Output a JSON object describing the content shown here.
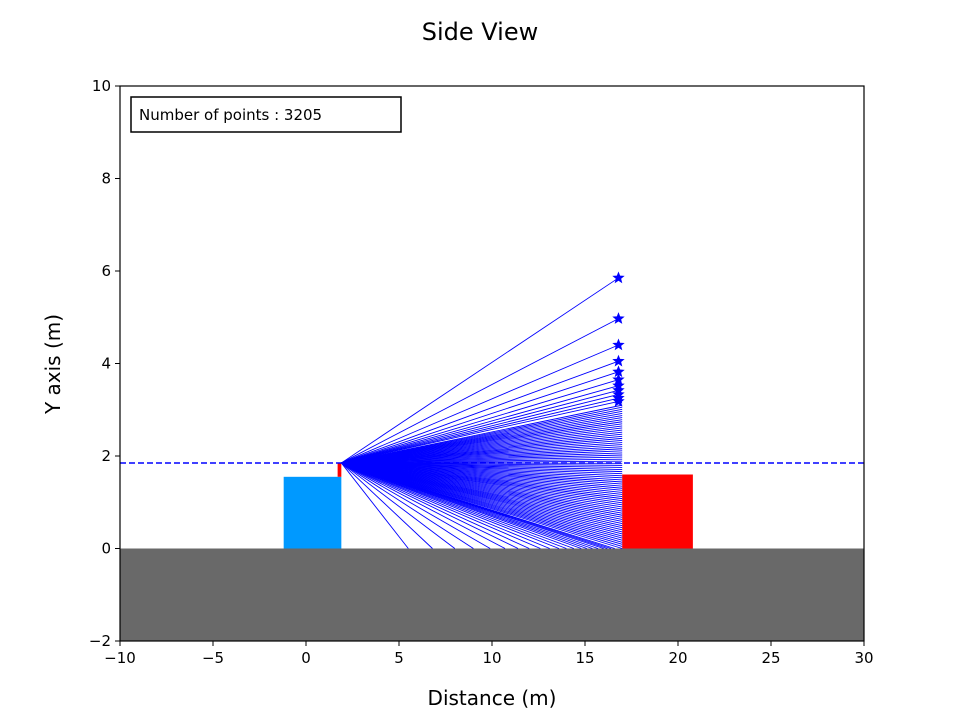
{
  "chart_data": {
    "type": "scatter",
    "title": "Side View",
    "xlabel": "Distance (m)",
    "ylabel": "Y axis (m)",
    "xlim": [
      -10,
      30
    ],
    "ylim": [
      -2,
      10
    ],
    "xticks": [
      -10,
      -5,
      0,
      5,
      10,
      15,
      20,
      25,
      30
    ],
    "xtick_labels": [
      "−10",
      "−5",
      "0",
      "5",
      "10",
      "15",
      "20",
      "25",
      "30"
    ],
    "yticks": [
      -2,
      0,
      2,
      4,
      6,
      8,
      10
    ],
    "ytick_labels": [
      "−2",
      "0",
      "2",
      "4",
      "6",
      "8",
      "10"
    ],
    "annotation": "Number of points : 3205",
    "colors": {
      "ground": "#696969",
      "ego_vehicle": "#0099ff",
      "target_vehicle": "#ff0000",
      "rays": "#0000ff",
      "sensor_mount": "#ff0000"
    },
    "ground": {
      "x": [
        -10,
        30
      ],
      "y": [
        -2,
        0
      ]
    },
    "ego_vehicle": {
      "x": [
        -1.2,
        1.9
      ],
      "y": [
        0,
        1.55
      ]
    },
    "target_vehicle": {
      "x": [
        17,
        20.8
      ],
      "y": [
        0,
        1.6
      ]
    },
    "sensor_mount": {
      "x": [
        1.7,
        1.9
      ],
      "y": [
        1.55,
        1.85
      ]
    },
    "sensor": {
      "x": 1.9,
      "y": 1.85
    },
    "sensor_height_line": {
      "y": 1.85,
      "style": "dashed"
    },
    "hit_points": [
      {
        "x": 16.8,
        "y": 5.85
      },
      {
        "x": 16.8,
        "y": 4.97
      },
      {
        "x": 16.8,
        "y": 4.4
      },
      {
        "x": 16.8,
        "y": 4.05
      },
      {
        "x": 16.8,
        "y": 3.82
      },
      {
        "x": 16.8,
        "y": 3.65
      },
      {
        "x": 16.8,
        "y": 3.52
      },
      {
        "x": 16.8,
        "y": 3.42
      },
      {
        "x": 16.8,
        "y": 3.33
      },
      {
        "x": 16.8,
        "y": 3.25
      },
      {
        "x": 16.8,
        "y": 3.18
      }
    ],
    "wall_fan": {
      "x": 17.0,
      "y_min": 0.0,
      "y_max": 3.1,
      "count": 70
    },
    "ground_hits_x": [
      5.5,
      6.8,
      8.0,
      9.0,
      9.9,
      10.7,
      11.4,
      12.0,
      12.6,
      13.1,
      13.6,
      14.0,
      14.4,
      14.8,
      15.1,
      15.4,
      15.7,
      16.0,
      16.2,
      16.4,
      16.6
    ]
  }
}
